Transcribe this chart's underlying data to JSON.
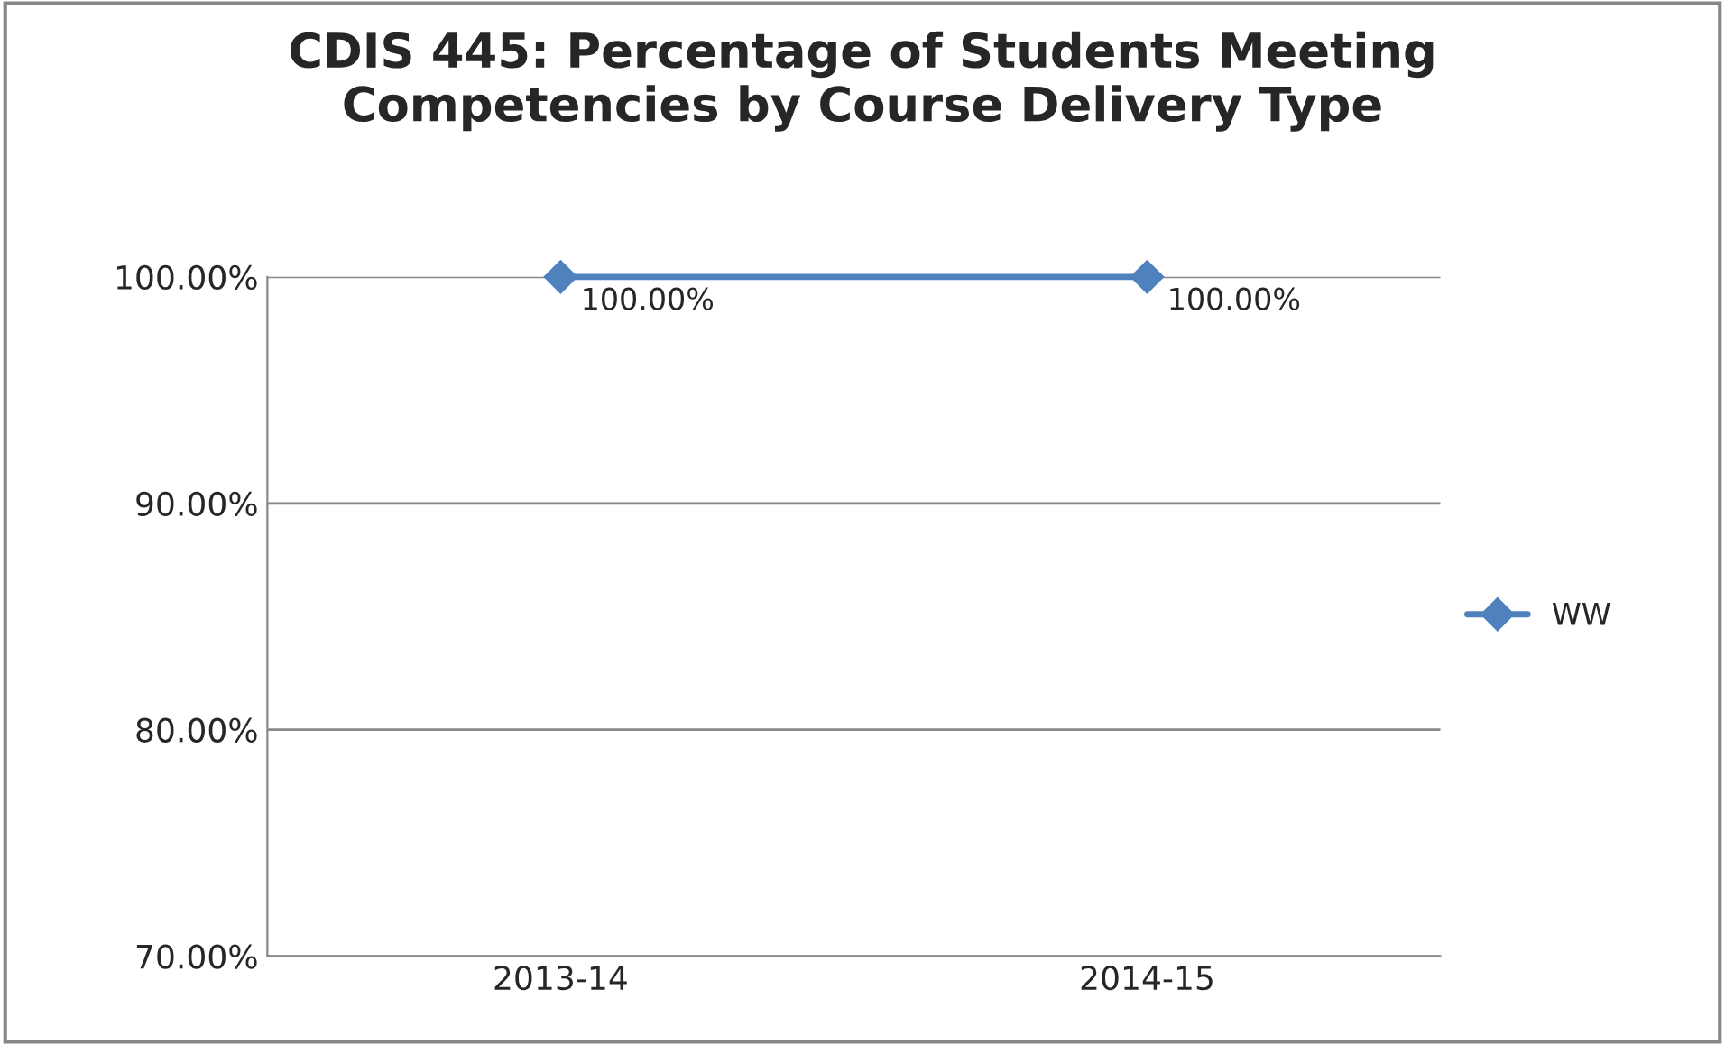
{
  "chart_data": {
    "type": "line",
    "title": "CDIS 445: Percentage of Students Meeting\nCompetencies by Course Delivery Type",
    "categories": [
      "2013-14",
      "2014-15"
    ],
    "series": [
      {
        "name": "WW",
        "color": "#4f81bd",
        "values": [
          100,
          100
        ],
        "value_labels": [
          "100.00%",
          "100.00%"
        ]
      }
    ],
    "ylim": [
      70,
      100
    ],
    "yticks": [
      {
        "value": 70,
        "label": "70.00%"
      },
      {
        "value": 80,
        "label": "80.00%"
      },
      {
        "value": 90,
        "label": "90.00%"
      },
      {
        "value": 100,
        "label": "100.00%"
      }
    ],
    "grid": "y",
    "legend": "right",
    "marker": "diamond",
    "line_style": "solid"
  }
}
